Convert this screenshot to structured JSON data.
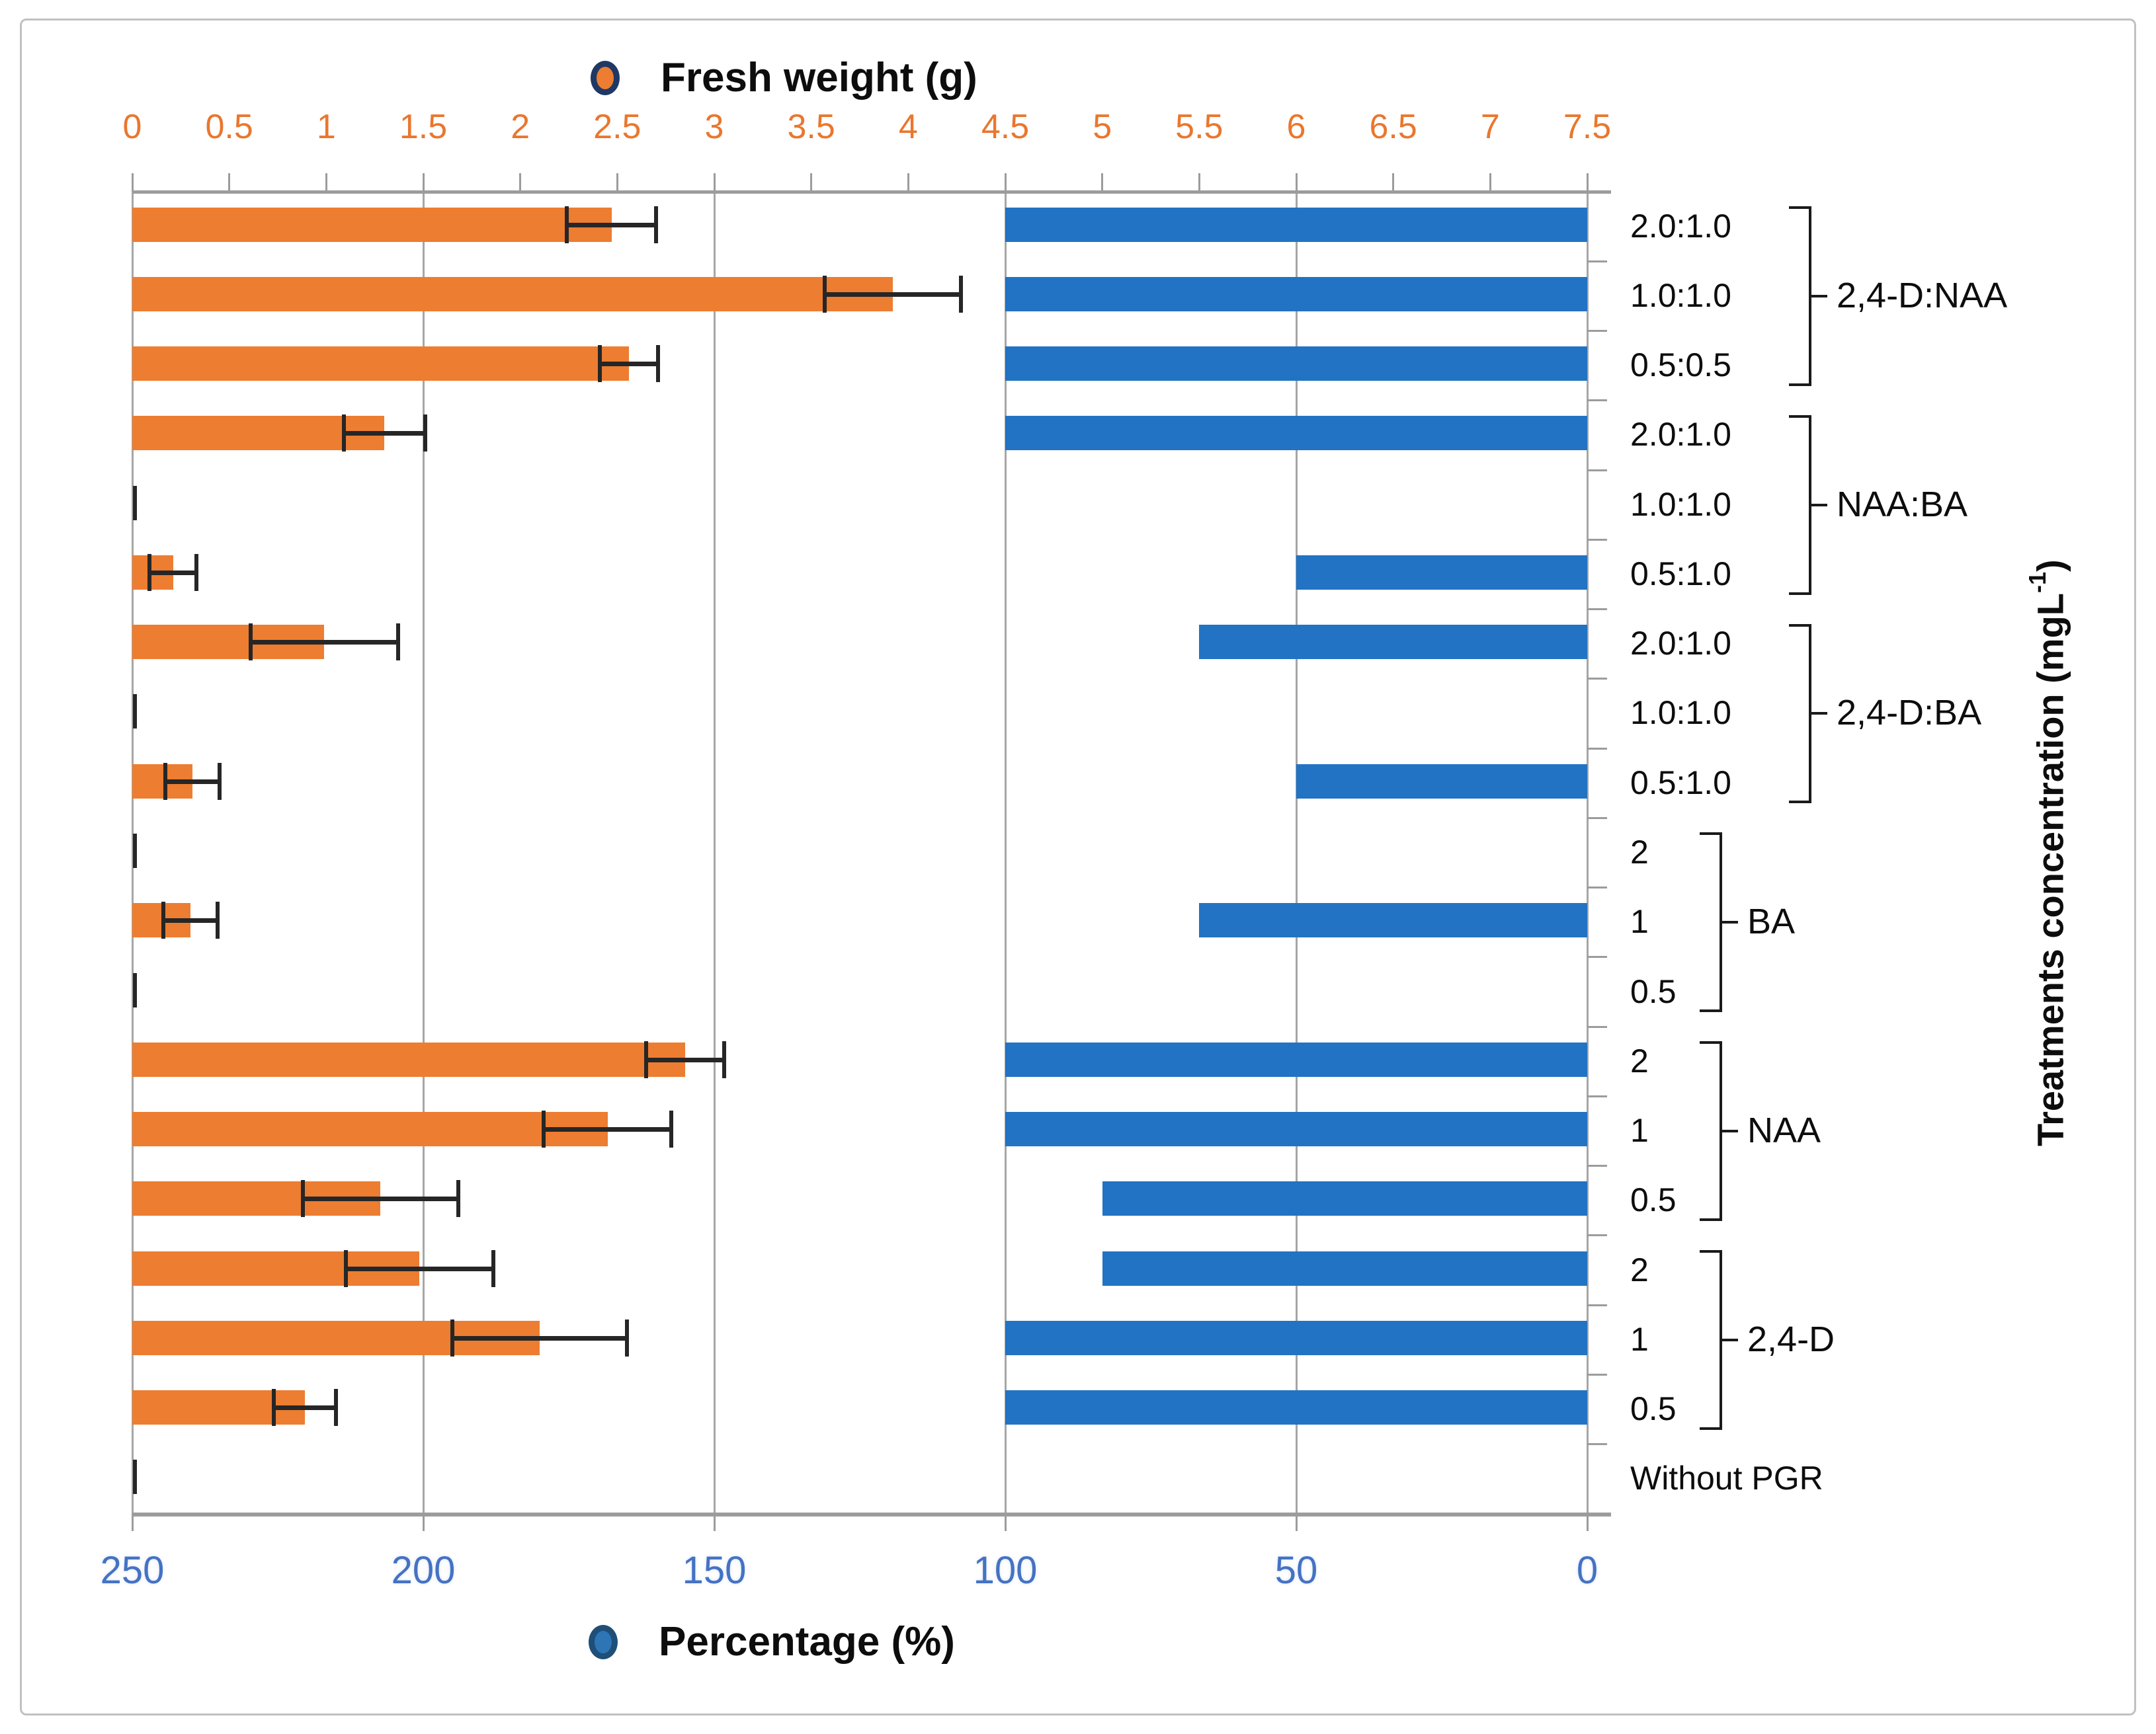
{
  "chart_data": {
    "type": "bar",
    "orientation": "horizontal",
    "categories": [
      "2.0:1.0",
      "1.0:1.0",
      "0.5:0.5",
      "2.0:1.0",
      "1.0:1.0",
      "0.5:1.0",
      "2.0:1.0",
      "1.0:1.0",
      "0.5:1.0",
      "2",
      "1",
      "0.5",
      "2",
      "1",
      "0.5",
      "2",
      "1",
      "0.5",
      "Without PGR"
    ],
    "groups": [
      {
        "label": "2,4-D:NAA",
        "rows": [
          0,
          1,
          2
        ]
      },
      {
        "label": "NAA:BA",
        "rows": [
          3,
          4,
          5
        ]
      },
      {
        "label": "2,4-D:BA",
        "rows": [
          6,
          7,
          8
        ]
      },
      {
        "label": "BA",
        "rows": [
          9,
          10,
          11
        ]
      },
      {
        "label": "NAA",
        "rows": [
          12,
          13,
          14
        ]
      },
      {
        "label": "2,4-D",
        "rows": [
          15,
          16,
          17
        ]
      }
    ],
    "series": [
      {
        "name": "Fresh weight (g)",
        "axis": "top",
        "values": [
          2.47,
          3.92,
          2.56,
          1.3,
          0,
          0.21,
          0.99,
          0,
          0.31,
          0,
          0.3,
          0,
          2.85,
          2.45,
          1.28,
          1.48,
          2.1,
          0.89,
          0
        ],
        "errors": [
          0.23,
          0.35,
          0.15,
          0.21,
          0.02,
          0.12,
          0.38,
          0.02,
          0.14,
          0.02,
          0.14,
          0.02,
          0.2,
          0.33,
          0.4,
          0.38,
          0.45,
          0.16,
          0.01
        ]
      },
      {
        "name": "Percentage (%)",
        "axis": "bottom",
        "values": [
          100,
          100,
          100,
          100,
          0,
          50,
          66.7,
          0,
          50,
          0,
          66.7,
          0,
          100,
          100,
          83.3,
          83.3,
          100,
          100,
          0
        ]
      }
    ],
    "axis_top": {
      "min": 0,
      "max": 7.5,
      "step": 0.5,
      "ticks": [
        "0",
        "0.5",
        "1",
        "1.5",
        "2",
        "2.5",
        "3",
        "3.5",
        "4",
        "4.5",
        "5",
        "5.5",
        "6",
        "6.5",
        "7",
        "7.5"
      ]
    },
    "axis_bottom": {
      "min": 0,
      "max": 250,
      "step": 50,
      "reversed": true,
      "ticks": [
        "250",
        "200",
        "150",
        "100",
        "50",
        "0"
      ]
    },
    "ylabel": "Treatments concentration (mgL-1)",
    "grid": true,
    "legend_position": "top-and-bottom"
  },
  "right_axis": {
    "title_main": "Treatments concentration (mgL",
    "title_sup": "-1",
    "title_close": ")"
  },
  "colors": {
    "orange_bar": "#ED7D31",
    "blue_bar": "#2273C3",
    "top_tick_text": "#E9772E",
    "bottom_tick_text": "#4472C4",
    "orange_marker_border": "#203864",
    "blue_marker_border": "#1F4E79",
    "blue_marker_fill": "#2E75B6",
    "gridline": "#A6A6A6",
    "axis_line": "#9C9C9C",
    "error_bar": "#262626",
    "label_text": "#0d0d0d"
  }
}
